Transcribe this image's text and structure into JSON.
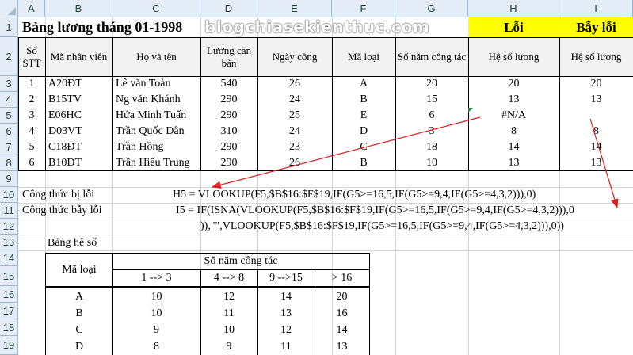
{
  "columns": [
    "A",
    "B",
    "C",
    "D",
    "E",
    "F",
    "G",
    "H",
    "I"
  ],
  "rows": [
    "1",
    "2",
    "3",
    "4",
    "5",
    "6",
    "7",
    "8",
    "9",
    "10",
    "11",
    "12",
    "13",
    "14",
    "15",
    "16",
    "17",
    "18",
    "19"
  ],
  "title": "Bảng lương tháng 01-1998",
  "watermark": "blogchiasekienthuc.com",
  "loi_label": "Lỗi",
  "bay_loi_label": "Bẫy lỗi",
  "table_headers": {
    "stt": "Số STT",
    "ma_nv": "Mã nhân viên",
    "ho_ten": "Họ và tên",
    "luong": "Lương căn bản",
    "ngay_cong": "Ngày công",
    "ma_loai": "Mã loại",
    "so_nam": "Số năm công tác",
    "he_so_h": "Hệ số lương",
    "he_so_i": "Hệ số lương"
  },
  "employees": [
    {
      "stt": "1",
      "ma": "A20ĐT",
      "ten": "Lê văn Toàn",
      "luong": "540",
      "ngay": "26",
      "loai": "A",
      "nam": "20",
      "h": "20",
      "i": "20"
    },
    {
      "stt": "2",
      "ma": "B15TV",
      "ten": "Ng văn Khánh",
      "luong": "290",
      "ngay": "24",
      "loai": "B",
      "nam": "15",
      "h": "13",
      "i": "13"
    },
    {
      "stt": "3",
      "ma": "E06HC",
      "ten": "Hứa Minh Tuấn",
      "luong": "290",
      "ngay": "25",
      "loai": "E",
      "nam": "6",
      "h": "#N/A",
      "i": ""
    },
    {
      "stt": "4",
      "ma": "D03VT",
      "ten": "Trần Quốc Dân",
      "luong": "310",
      "ngay": "24",
      "loai": "D",
      "nam": "3",
      "h": "8",
      "i": "8"
    },
    {
      "stt": "5",
      "ma": "C18ĐT",
      "ten": "Trần Hồng",
      "luong": "290",
      "ngay": "23",
      "loai": "C",
      "nam": "18",
      "h": "14",
      "i": "14"
    },
    {
      "stt": "6",
      "ma": "B10ĐT",
      "ten": "Trần Hiếu Trung",
      "luong": "290",
      "ngay": "26",
      "loai": "B",
      "nam": "10",
      "h": "13",
      "i": "13"
    }
  ],
  "formulas": {
    "error_label": "Công thức bị lỗi",
    "trap_label": "Công thức bẫy lỗi",
    "h5": "H5 = VLOOKUP(F5,$B$16:$F$19,IF(G5>=16,5,IF(G5>=9,4,IF(G5>=4,3,2))),0)",
    "i5_line1": "I5 = IF(ISNA(VLOOKUP(F5,$B$16:$F$19,IF(G5>=16,5,IF(G5>=9,4,IF(G5>=4,3,2))),0",
    "i5_line2": ")),\"\",VLOOKUP(F5,$B$16:$F$19,IF(G5>=16,5,IF(G5>=9,4,IF(G5>=4,3,2))),0))"
  },
  "coef_table": {
    "title": "Bảng hệ số",
    "ma_loai": "Mã loại",
    "so_nam": "Số năm công tác",
    "ranges": [
      "1 --> 3",
      "4 --> 8",
      "9 -->15",
      "> 16"
    ],
    "rows": [
      {
        "loai": "A",
        "v": [
          "10",
          "12",
          "14",
          "20"
        ]
      },
      {
        "loai": "B",
        "v": [
          "10",
          "11",
          "13",
          "16"
        ]
      },
      {
        "loai": "C",
        "v": [
          "9",
          "10",
          "12",
          "14"
        ]
      },
      {
        "loai": "D",
        "v": [
          "8",
          "9",
          "11",
          "13"
        ]
      }
    ]
  },
  "colors": {
    "highlight": "#ffff00",
    "arrow": "#e02020",
    "header_bg": "#e4ecf7"
  }
}
